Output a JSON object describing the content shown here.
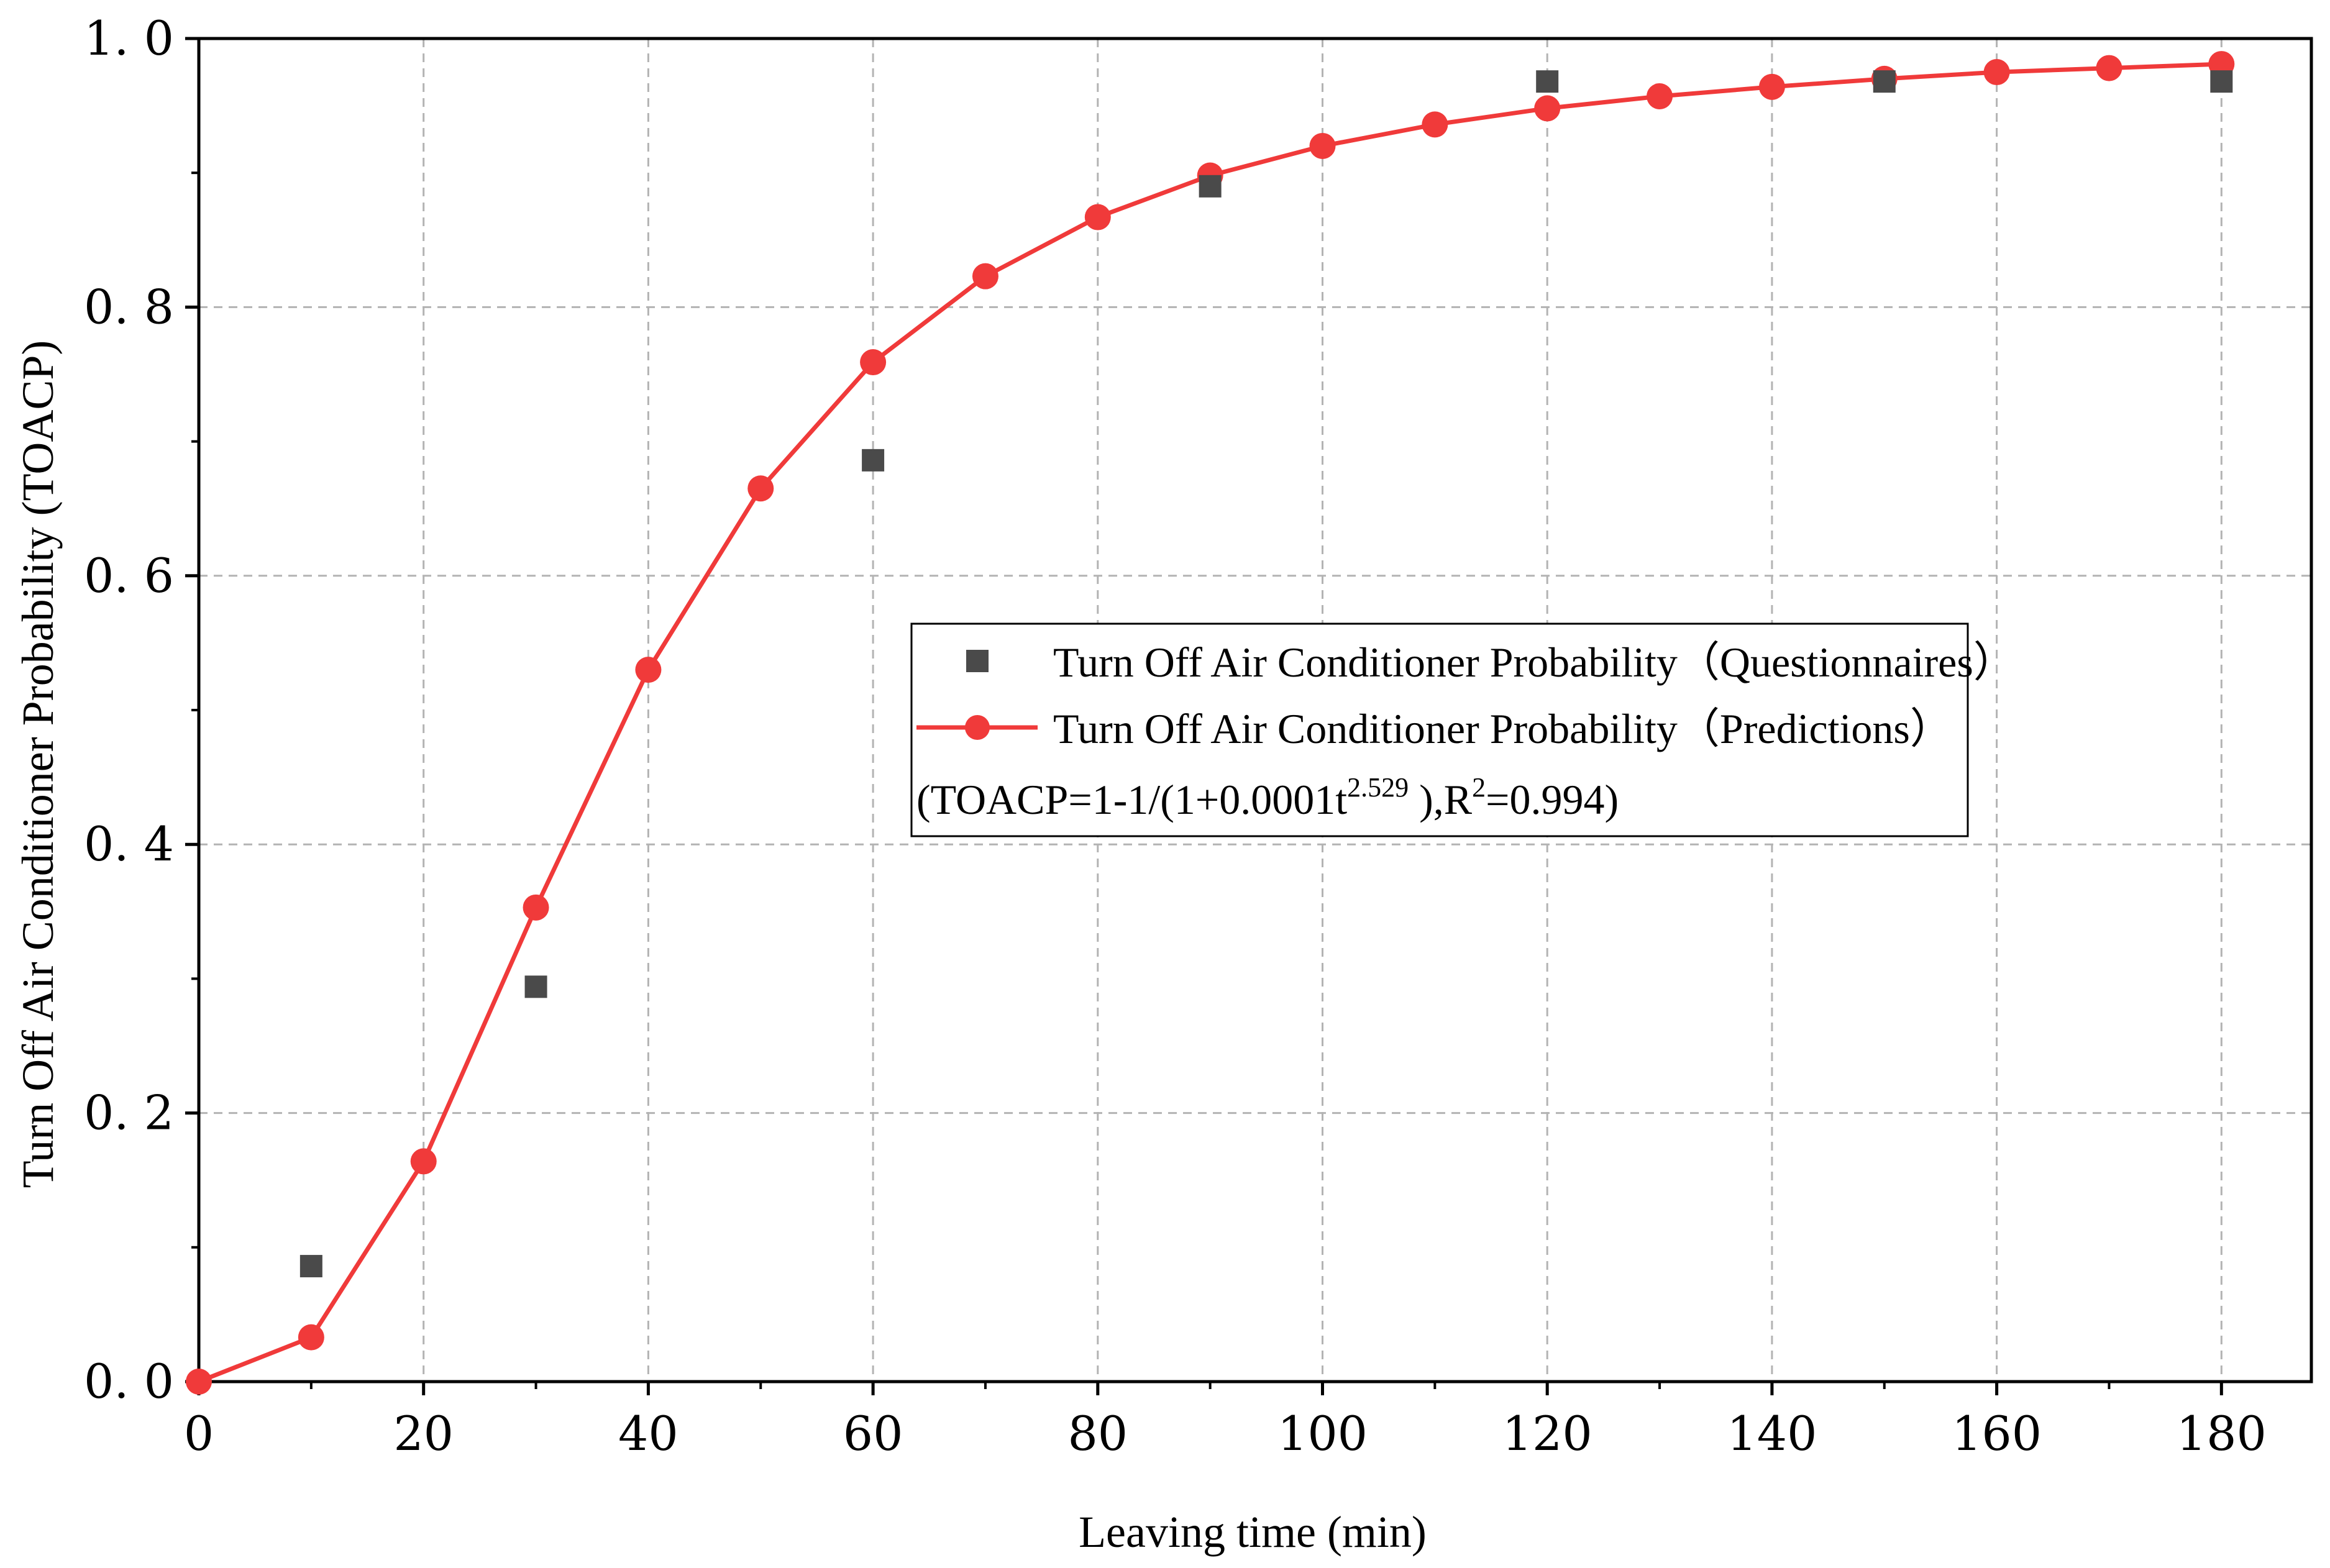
{
  "chart_data": {
    "type": "scatter+line",
    "title": "",
    "xlabel": "Leaving time (min)",
    "ylabel": "Turn Off Air Conditioner Probability (TOACP)",
    "xlim": [
      0,
      188
    ],
    "ylim": [
      0.0,
      1.0
    ],
    "x_ticks": [
      0,
      20,
      40,
      60,
      80,
      100,
      120,
      140,
      160,
      180
    ],
    "x_tick_labels": [
      "0",
      "20",
      "40",
      "60",
      "80",
      "100",
      "120",
      "140",
      "160",
      "180"
    ],
    "y_ticks": [
      0.0,
      0.2,
      0.4,
      0.6,
      0.8,
      1.0
    ],
    "y_tick_labels": [
      "0. 0",
      "0. 2",
      "0. 4",
      "0. 6",
      "0. 8",
      "1. 0"
    ],
    "grid": true,
    "legend_position": "center-right",
    "series": [
      {
        "name": "Turn Off Air Conditioner Probability（Questionnaires）",
        "kind": "scatter",
        "marker": "square",
        "color": "#4a4a4a",
        "x": [
          10,
          30,
          60,
          90,
          120,
          150,
          180
        ],
        "y": [
          0.086,
          0.294,
          0.686,
          0.89,
          0.968,
          0.968,
          0.968
        ]
      },
      {
        "name": "Turn Off Air Conditioner Probability（Predictions）",
        "kind": "line+marker",
        "marker": "circle",
        "color": "#f03a3a",
        "x": [
          0,
          10,
          20,
          30,
          40,
          50,
          60,
          70,
          80,
          90,
          100,
          110,
          120,
          130,
          140,
          150,
          160,
          170,
          180
        ],
        "y": [
          0.0,
          0.033,
          0.164,
          0.353,
          0.53,
          0.665,
          0.759,
          0.823,
          0.867,
          0.898,
          0.92,
          0.936,
          0.948,
          0.957,
          0.964,
          0.97,
          0.975,
          0.978,
          0.981
        ]
      }
    ],
    "equation": {
      "prefix": "(TOACP=1-1/(1+0.0001t",
      "exponent": "2.529",
      "middle": " ),R",
      "r_exponent": "2",
      "suffix": "=0.994)"
    }
  },
  "colors": {
    "axis": "#000000",
    "grid": "#b3b3b3",
    "predictions": "#f03a3a",
    "questionnaires": "#4a4a4a"
  }
}
